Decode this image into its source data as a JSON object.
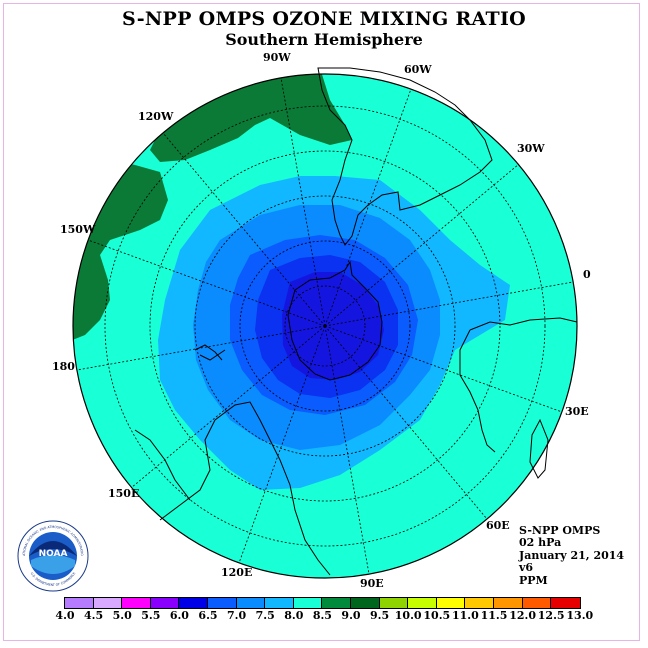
{
  "title": "S-NPP OMPS OZONE MIXING RATIO",
  "subtitle": "Southern Hemisphere",
  "longitude_labels": [
    "90W",
    "60W",
    "120W",
    "30W",
    "150W",
    "0",
    "180",
    "30E",
    "150E",
    "60E",
    "120E",
    "90E"
  ],
  "info": {
    "instrument": "S-NPP OMPS",
    "level": "02 hPa",
    "date": "January 21, 2014",
    "version": "v6",
    "units": "PPM"
  },
  "colorbar": {
    "ticks": [
      "4.0",
      "4.5",
      "5.0",
      "5.5",
      "6.0",
      "6.5",
      "7.0",
      "7.5",
      "8.0",
      "8.5",
      "9.0",
      "9.5",
      "10.0",
      "10.5",
      "11.0",
      "11.5",
      "12.0",
      "12.5",
      "13.0"
    ],
    "colors": [
      "#b57cff",
      "#d9a8ff",
      "#ff00ff",
      "#8a00ff",
      "#0000e6",
      "#0a5cff",
      "#0a8cff",
      "#12b8ff",
      "#19ffd6",
      "#008a3c",
      "#00661e",
      "#8fd400",
      "#c8ff00",
      "#ffff00",
      "#ffc800",
      "#ff9600",
      "#ff5a00",
      "#e60000",
      "#7a4a2a"
    ]
  },
  "logo": {
    "text": "NOAA",
    "ring_text": "NATIONAL OCEANIC AND ATMOSPHERIC ADMINISTRATION",
    "ring_text_bottom": "U.S. DEPARTMENT OF COMMERCE"
  },
  "colors": {
    "bg_fill": "#19ffd6",
    "pole_dark": "#1515e0",
    "ring_1": "#0a5cff",
    "ring_2": "#0a8cff",
    "ring_3": "#12b8ff",
    "green": "#0a7a36"
  }
}
